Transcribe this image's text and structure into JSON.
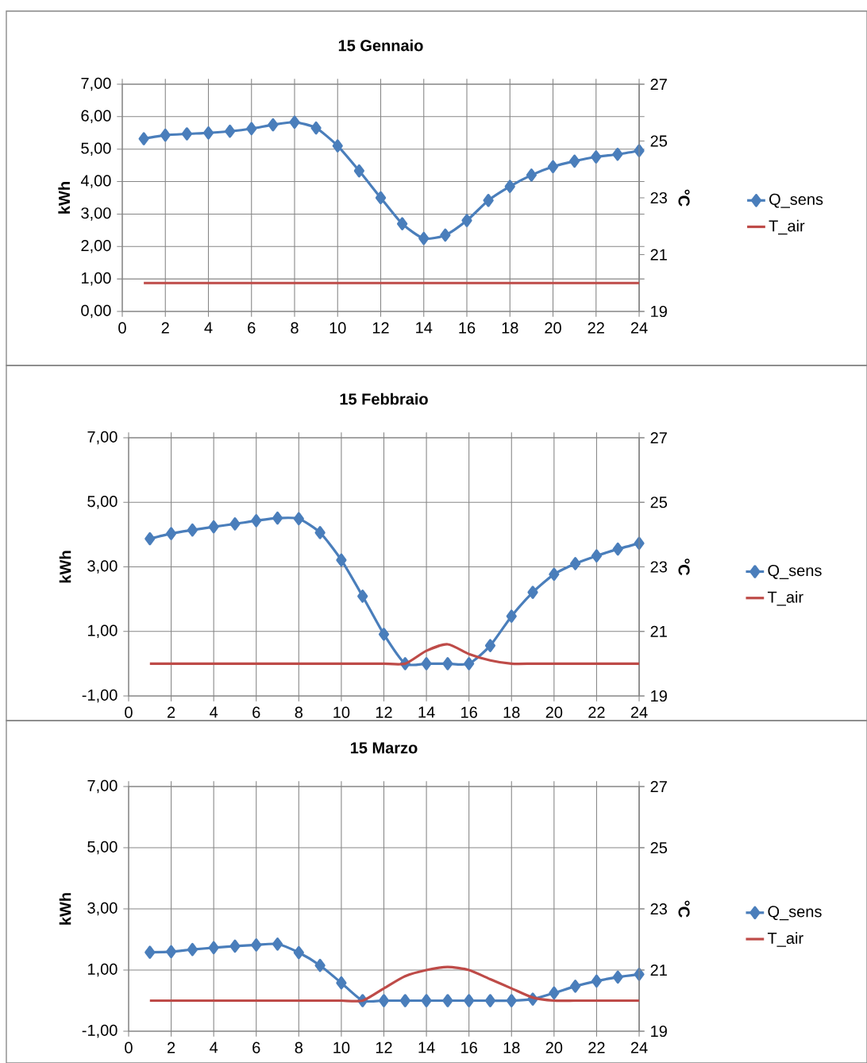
{
  "chart_data": [
    {
      "type": "line",
      "title": "15 Gennaio",
      "ylabel": "kWh",
      "y2label": "°C",
      "x": [
        1,
        2,
        3,
        4,
        5,
        6,
        7,
        8,
        9,
        10,
        11,
        12,
        13,
        14,
        15,
        16,
        17,
        18,
        19,
        20,
        21,
        22,
        23,
        24
      ],
      "xlim": [
        0,
        24
      ],
      "xticks": [
        0,
        2,
        4,
        6,
        8,
        10,
        12,
        14,
        16,
        18,
        20,
        22,
        24
      ],
      "ylim": [
        0,
        7
      ],
      "yticks": [
        {
          "value": 0,
          "label": "0,00"
        },
        {
          "value": 1,
          "label": "1,00"
        },
        {
          "value": 2,
          "label": "2,00"
        },
        {
          "value": 3,
          "label": "3,00"
        },
        {
          "value": 4,
          "label": "4,00"
        },
        {
          "value": 5,
          "label": "5,00"
        },
        {
          "value": 6,
          "label": "6,00"
        },
        {
          "value": 7,
          "label": "7,00"
        }
      ],
      "y2lim": [
        19,
        27
      ],
      "y2ticks": [
        19,
        21,
        23,
        25,
        27
      ],
      "grid": true,
      "legend": "right",
      "series": [
        {
          "name": "Q_sens",
          "color": "#4a7ebb",
          "marker": "diamond",
          "values": [
            5.32,
            5.43,
            5.47,
            5.5,
            5.55,
            5.63,
            5.75,
            5.83,
            5.65,
            5.1,
            4.33,
            3.5,
            2.7,
            2.25,
            2.35,
            2.8,
            3.42,
            3.85,
            4.2,
            4.46,
            4.63,
            4.76,
            4.84,
            4.95
          ]
        },
        {
          "name": "T_air",
          "color": "#be4b48",
          "marker": "none",
          "axis": "y2",
          "values": [
            20,
            20,
            20,
            20,
            20,
            20,
            20,
            20,
            20,
            20,
            20,
            20,
            20,
            20,
            20,
            20,
            20,
            20,
            20,
            20,
            20,
            20,
            20,
            20
          ]
        }
      ]
    },
    {
      "type": "line",
      "title": "15 Febbraio",
      "ylabel": "kWh",
      "y2label": "°C",
      "x": [
        1,
        2,
        3,
        4,
        5,
        6,
        7,
        8,
        9,
        10,
        11,
        12,
        13,
        14,
        15,
        16,
        17,
        18,
        19,
        20,
        21,
        22,
        23,
        24
      ],
      "xlim": [
        0,
        24
      ],
      "xticks": [
        0,
        2,
        4,
        6,
        8,
        10,
        12,
        14,
        16,
        18,
        20,
        22,
        24
      ],
      "ylim": [
        -1,
        7
      ],
      "yticks": [
        {
          "value": -1,
          "label": "-1,00"
        },
        {
          "value": 1,
          "label": "1,00"
        },
        {
          "value": 3,
          "label": "3,00"
        },
        {
          "value": 5,
          "label": "5,00"
        },
        {
          "value": 7,
          "label": "7,00"
        }
      ],
      "y2lim": [
        19,
        27
      ],
      "y2ticks": [
        19,
        21,
        23,
        25,
        27
      ],
      "grid": true,
      "legend": "right",
      "series": [
        {
          "name": "Q_sens",
          "color": "#4a7ebb",
          "marker": "diamond",
          "values": [
            3.87,
            4.03,
            4.14,
            4.24,
            4.33,
            4.43,
            4.51,
            4.49,
            4.06,
            3.21,
            2.09,
            0.91,
            0,
            0,
            0,
            0,
            0.56,
            1.47,
            2.21,
            2.77,
            3.1,
            3.34,
            3.55,
            3.73
          ]
        },
        {
          "name": "T_air",
          "color": "#be4b48",
          "marker": "none",
          "axis": "y2",
          "values": [
            20,
            20,
            20,
            20,
            20,
            20,
            20,
            20,
            20,
            20,
            20,
            20,
            20,
            20.4,
            20.6,
            20.3,
            20.1,
            20,
            20,
            20,
            20,
            20,
            20,
            20
          ]
        }
      ]
    },
    {
      "type": "line",
      "title": "15 Marzo",
      "ylabel": "kWh",
      "y2label": "°C",
      "x": [
        1,
        2,
        3,
        4,
        5,
        6,
        7,
        8,
        9,
        10,
        11,
        12,
        13,
        14,
        15,
        16,
        17,
        18,
        19,
        20,
        21,
        22,
        23,
        24
      ],
      "xlim": [
        0,
        24
      ],
      "xticks": [
        0,
        2,
        4,
        6,
        8,
        10,
        12,
        14,
        16,
        18,
        20,
        22,
        24
      ],
      "ylim": [
        -1,
        7
      ],
      "yticks": [
        {
          "value": -1,
          "label": "-1,00"
        },
        {
          "value": 1,
          "label": "1,00"
        },
        {
          "value": 3,
          "label": "3,00"
        },
        {
          "value": 5,
          "label": "5,00"
        },
        {
          "value": 7,
          "label": "7,00"
        }
      ],
      "y2lim": [
        19,
        27
      ],
      "y2ticks": [
        19,
        21,
        23,
        25,
        27
      ],
      "grid": true,
      "legend": "right",
      "series": [
        {
          "name": "Q_sens",
          "color": "#4a7ebb",
          "marker": "diamond",
          "values": [
            1.58,
            1.6,
            1.67,
            1.73,
            1.78,
            1.82,
            1.85,
            1.57,
            1.15,
            0.58,
            0,
            0,
            0,
            0,
            0,
            0,
            0,
            0,
            0.05,
            0.25,
            0.47,
            0.64,
            0.77,
            0.86
          ]
        },
        {
          "name": "T_air",
          "color": "#be4b48",
          "marker": "none",
          "axis": "y2",
          "values": [
            20,
            20,
            20,
            20,
            20,
            20,
            20,
            20,
            20,
            20,
            20,
            20.4,
            20.8,
            21.0,
            21.1,
            21.0,
            20.7,
            20.4,
            20.1,
            20,
            20,
            20,
            20,
            20
          ]
        }
      ]
    }
  ]
}
